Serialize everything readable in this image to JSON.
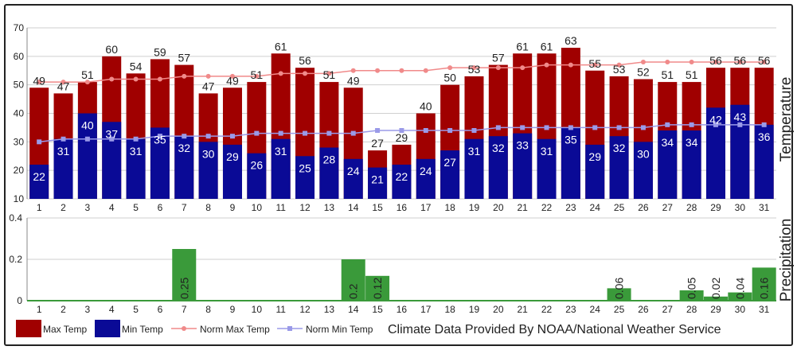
{
  "chart_data": [
    {
      "type": "bar",
      "ylabel": "Temperature",
      "ylim": [
        10,
        70
      ],
      "yticks": [
        "10",
        "20",
        "30",
        "40",
        "50",
        "60",
        "70"
      ],
      "categories": [
        "1",
        "2",
        "3",
        "4",
        "5",
        "6",
        "7",
        "8",
        "9",
        "10",
        "11",
        "12",
        "13",
        "14",
        "15",
        "16",
        "17",
        "18",
        "19",
        "20",
        "21",
        "22",
        "23",
        "24",
        "25",
        "26",
        "27",
        "28",
        "29",
        "30",
        "31"
      ],
      "series": [
        {
          "name": "Max Temp",
          "type": "bar",
          "color": "#a00000",
          "values": [
            49,
            47,
            51,
            60,
            54,
            59,
            57,
            47,
            49,
            51,
            61,
            56,
            51,
            49,
            27,
            29,
            40,
            50,
            53,
            57,
            61,
            61,
            63,
            55,
            53,
            52,
            51,
            51,
            56,
            56,
            56
          ]
        },
        {
          "name": "Min Temp",
          "type": "bar",
          "color": "#0a0a96",
          "values": [
            22,
            31,
            40,
            37,
            31,
            35,
            32,
            30,
            29,
            26,
            31,
            25,
            28,
            24,
            21,
            22,
            24,
            27,
            31,
            32,
            33,
            31,
            35,
            29,
            32,
            30,
            34,
            34,
            42,
            43,
            36
          ]
        },
        {
          "name": "Norm Max Temp",
          "type": "line",
          "color": "#f08a8a",
          "values": [
            51,
            51,
            51,
            52,
            52,
            52,
            53,
            53,
            53,
            53,
            54,
            54,
            54,
            55,
            55,
            55,
            55,
            56,
            56,
            56,
            56,
            57,
            57,
            57,
            57,
            58,
            58,
            58,
            58,
            58,
            58
          ]
        },
        {
          "name": "Norm Min Temp",
          "type": "line",
          "color": "#9a9ae8",
          "values": [
            30,
            31,
            31,
            31,
            31,
            32,
            32,
            32,
            32,
            33,
            33,
            33,
            33,
            33,
            34,
            34,
            34,
            34,
            34,
            35,
            35,
            35,
            35,
            35,
            35,
            35,
            36,
            36,
            36,
            36,
            36
          ]
        }
      ],
      "grid": true
    },
    {
      "type": "bar",
      "ylabel": "Precipitation",
      "ylim": [
        0,
        0.4
      ],
      "yticks": [
        "0",
        "0.2",
        "0.4"
      ],
      "categories": [
        "1",
        "2",
        "3",
        "4",
        "5",
        "6",
        "7",
        "8",
        "9",
        "10",
        "11",
        "12",
        "13",
        "14",
        "15",
        "16",
        "17",
        "18",
        "19",
        "20",
        "21",
        "22",
        "23",
        "24",
        "25",
        "26",
        "27",
        "28",
        "29",
        "30",
        "31"
      ],
      "series": [
        {
          "name": "Precipitation",
          "type": "bar",
          "color": "#3a9a3a",
          "values": [
            0,
            0,
            0,
            0,
            0,
            0,
            0.25,
            0,
            0,
            0,
            0,
            0,
            0,
            0.2,
            0.12,
            0,
            0,
            0,
            0,
            0,
            0,
            0,
            0,
            0,
            0.06,
            0,
            0,
            0.05,
            0.02,
            0.04,
            0.16
          ],
          "labels": [
            "",
            "",
            "",
            "",
            "",
            "",
            "0.25",
            "",
            "",
            "",
            "",
            "",
            "",
            "0.2",
            "0.12",
            "",
            "",
            "",
            "",
            "",
            "",
            "",
            "",
            "",
            "0.06",
            "",
            "",
            "0.05",
            "0.02",
            "0.04",
            "0.16"
          ]
        }
      ],
      "grid": true
    }
  ],
  "legend": {
    "items": [
      {
        "label": "Max Temp",
        "kind": "box",
        "color": "#a00000"
      },
      {
        "label": "Min Temp",
        "kind": "box",
        "color": "#0a0a96"
      },
      {
        "label": "Norm Max Temp",
        "kind": "line",
        "color": "#f08a8a"
      },
      {
        "label": "Norm Min Temp",
        "kind": "line",
        "color": "#9a9ae8"
      }
    ],
    "credit": "Climate Data Provided By NOAA/National Weather Service"
  }
}
